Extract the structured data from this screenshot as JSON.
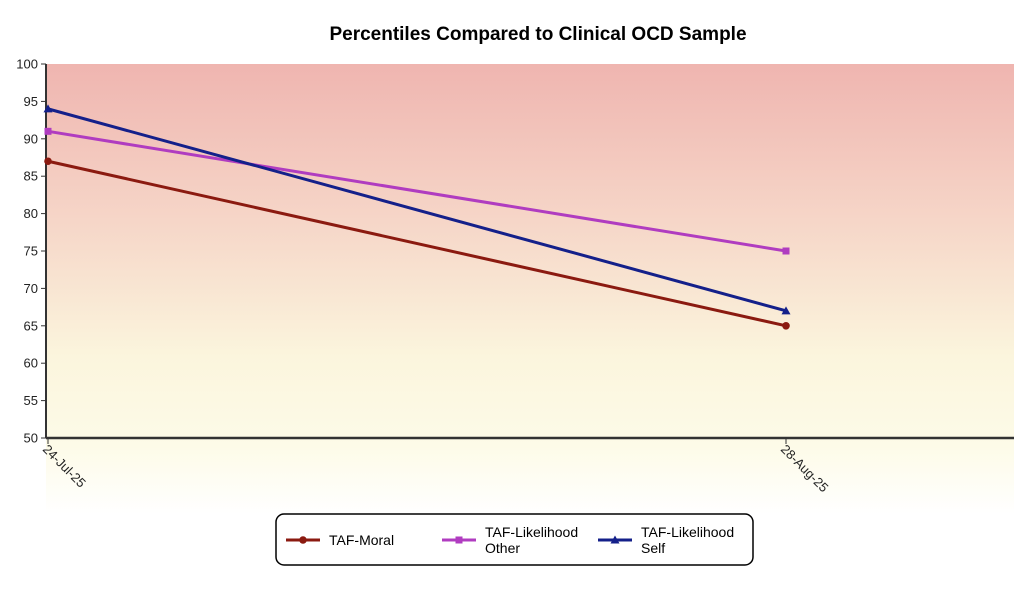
{
  "chart_data": {
    "type": "line",
    "title": "Percentiles Compared to Clinical OCD Sample",
    "xlabel": "",
    "ylabel": "",
    "x": [
      "24-Jul-25",
      "28-Aug-25"
    ],
    "ylim": [
      50,
      100
    ],
    "yticks": [
      50,
      55,
      60,
      65,
      70,
      75,
      80,
      85,
      90,
      95,
      100
    ],
    "grid": false,
    "legend_position": "bottom-center",
    "background": "gradient red (top) to yellow to white (bottom)",
    "series": [
      {
        "name": "TAF-Moral",
        "values": [
          87,
          65
        ],
        "color": "#8b1a10",
        "marker": "circle"
      },
      {
        "name": "TAF-Likelihood Other",
        "values": [
          91,
          75
        ],
        "color": "#b03cc0",
        "marker": "square"
      },
      {
        "name": "TAF-Likelihood Self",
        "values": [
          94,
          67
        ],
        "color": "#14208a",
        "marker": "triangle"
      }
    ]
  },
  "legend": {
    "items": [
      {
        "line1": "TAF-Moral",
        "line2": ""
      },
      {
        "line1": "TAF-Likelihood",
        "line2": "Other"
      },
      {
        "line1": "TAF-Likelihood",
        "line2": "Self"
      }
    ]
  }
}
